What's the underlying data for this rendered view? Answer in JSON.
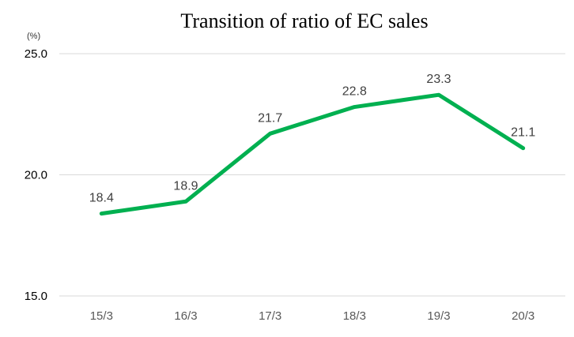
{
  "chart_data": {
    "type": "line",
    "title": "Transition of ratio of EC sales",
    "unit_label": "(%)",
    "categories": [
      "15/3",
      "16/3",
      "17/3",
      "18/3",
      "19/3",
      "20/3"
    ],
    "series": [
      {
        "values": [
          18.4,
          18.9,
          21.7,
          22.8,
          23.3,
          21.1
        ],
        "color": "#00b050"
      }
    ],
    "data_labels": [
      "18.4",
      "18.9",
      "21.7",
      "22.8",
      "23.3",
      "21.1"
    ],
    "y_ticks": [
      "15.0",
      "20.0",
      "25.0"
    ],
    "ylim": [
      15,
      25
    ],
    "grid": true,
    "legend": "none"
  }
}
